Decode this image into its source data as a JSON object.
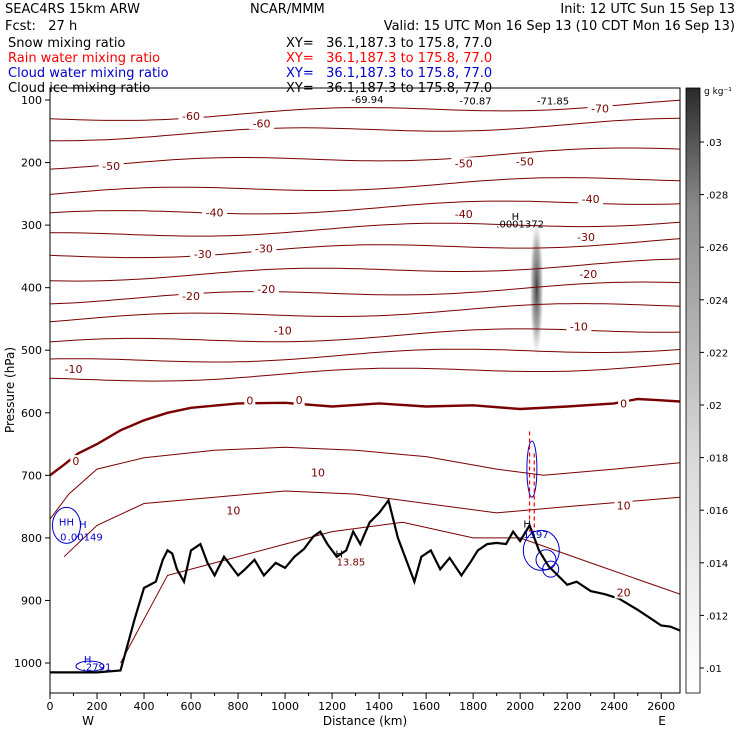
{
  "header": {
    "left_line1": "SEAC4RS 15km ARW",
    "left_line2": "Fcst:   27 h",
    "center_line1": "NCAR/MMM",
    "init_line": "Init: 12 UTC Sun 15 Sep 13",
    "valid_line": "Valid: 15 UTC Mon 16 Sep 13 (10 CDT Mon 16 Sep 13)"
  },
  "fields": [
    {
      "name": "Snow mixing ratio",
      "xy": "XY=   36.1,187.3 to 175.8, 77.0",
      "color": "#000000"
    },
    {
      "name": "Rain water mixing ratio",
      "xy": "XY=   36.1,187.3 to 175.8, 77.0",
      "color": "#ff0000"
    },
    {
      "name": "Cloud water mixing ratio",
      "xy": "XY=   36.1,187.3 to 175.8, 77.0",
      "color": "#0000cc"
    },
    {
      "name": "Cloud ice mixing ratio",
      "xy": "XY=   36.1,187.3 to 175.8, 77.0",
      "color": "#000000"
    }
  ],
  "colors": {
    "temperature": "#7a0000",
    "terrain": "#000000",
    "cloud": "#0000cc",
    "rain": "#ff0000"
  },
  "chart_data": {
    "type": "cross-section",
    "xlabel": "Distance (km)",
    "ylabel": "Pressure (hPa)",
    "xlim": [
      0,
      2680
    ],
    "ylim": [
      1050,
      100
    ],
    "xticks": [
      0,
      200,
      400,
      600,
      800,
      1000,
      1200,
      1400,
      1600,
      1800,
      2000,
      2200,
      2400,
      2600
    ],
    "yticks": [
      100,
      200,
      300,
      400,
      500,
      600,
      700,
      800,
      900,
      1000
    ],
    "x_end_labels": {
      "left": "W",
      "right": "E"
    },
    "colorbar": {
      "unit": "g kg⁻¹",
      "ticks": [
        ".01",
        ".012",
        ".014",
        ".016",
        ".018",
        ".02",
        ".022",
        ".024",
        ".026",
        ".028",
        ".03"
      ]
    },
    "temperature_contour_labels": [
      {
        "text": "-60",
        "x": 600,
        "p": 130
      },
      {
        "text": "-60",
        "x": 900,
        "p": 142
      },
      {
        "text": "-70",
        "x": 2340,
        "p": 118
      },
      {
        "text": "-50",
        "x": 260,
        "p": 210
      },
      {
        "text": "-50",
        "x": 1760,
        "p": 206
      },
      {
        "text": "-50",
        "x": 2020,
        "p": 203
      },
      {
        "text": "-40",
        "x": 700,
        "p": 285
      },
      {
        "text": "-40",
        "x": 1760,
        "p": 287
      },
      {
        "text": "-40",
        "x": 2300,
        "p": 263
      },
      {
        "text": "-30",
        "x": 650,
        "p": 351
      },
      {
        "text": "-30",
        "x": 910,
        "p": 342
      },
      {
        "text": "-30",
        "x": 2280,
        "p": 324
      },
      {
        "text": "-20",
        "x": 600,
        "p": 418
      },
      {
        "text": "-20",
        "x": 920,
        "p": 407
      },
      {
        "text": "-20",
        "x": 2290,
        "p": 383
      },
      {
        "text": "-10",
        "x": 990,
        "p": 473
      },
      {
        "text": "-10",
        "x": 100,
        "p": 535
      },
      {
        "text": "-10",
        "x": 2250,
        "p": 467
      },
      {
        "text": "0",
        "x": 850,
        "p": 585
      },
      {
        "text": "0",
        "x": 1060,
        "p": 584
      },
      {
        "text": "0",
        "x": 2440,
        "p": 590
      },
      {
        "text": "0",
        "x": 110,
        "p": 682
      },
      {
        "text": "10",
        "x": 1140,
        "p": 700
      },
      {
        "text": "10",
        "x": 780,
        "p": 761
      },
      {
        "text": "10",
        "x": 2440,
        "p": 753
      },
      {
        "text": "20",
        "x": 2440,
        "p": 892
      }
    ],
    "extrema": [
      {
        "text": "-69.94",
        "x": 1350,
        "p": 105
      },
      {
        "text": "-70.87",
        "x": 1810,
        "p": 107
      },
      {
        "text": "-71.85",
        "x": 2140,
        "p": 107
      },
      {
        "text": "H",
        "x": 1980,
        "p": 292
      },
      {
        "text": ".0001372",
        "x": 2000,
        "p": 304
      },
      {
        "text": "HH",
        "x": 70,
        "p": 780
      },
      {
        "text": "H",
        "x": 140,
        "p": 784
      },
      {
        "text": ".0",
        "x": 50,
        "p": 804
      },
      {
        "text": ".00149",
        "x": 150,
        "p": 804
      },
      {
        "text": "H",
        "x": 1230,
        "p": 831
      },
      {
        "text": "13.85",
        "x": 1280,
        "p": 844
      },
      {
        "text": "H",
        "x": 2030,
        "p": 783
      },
      {
        "text": ".1597",
        "x": 2060,
        "p": 800
      },
      {
        "text": "H",
        "x": 160,
        "p": 1000
      },
      {
        "text": ".2791",
        "x": 200,
        "p": 1012
      }
    ],
    "terrain": [
      [
        0,
        1015
      ],
      [
        100,
        1015
      ],
      [
        200,
        1015
      ],
      [
        300,
        1012
      ],
      [
        320,
        985
      ],
      [
        360,
        930
      ],
      [
        400,
        880
      ],
      [
        450,
        870
      ],
      [
        480,
        835
      ],
      [
        500,
        820
      ],
      [
        520,
        825
      ],
      [
        540,
        850
      ],
      [
        570,
        870
      ],
      [
        600,
        820
      ],
      [
        640,
        810
      ],
      [
        670,
        840
      ],
      [
        700,
        860
      ],
      [
        740,
        830
      ],
      [
        770,
        845
      ],
      [
        800,
        860
      ],
      [
        830,
        850
      ],
      [
        870,
        835
      ],
      [
        910,
        860
      ],
      [
        960,
        840
      ],
      [
        1000,
        848
      ],
      [
        1040,
        830
      ],
      [
        1080,
        818
      ],
      [
        1120,
        798
      ],
      [
        1150,
        790
      ],
      [
        1180,
        810
      ],
      [
        1220,
        830
      ],
      [
        1260,
        820
      ],
      [
        1290,
        790
      ],
      [
        1320,
        810
      ],
      [
        1360,
        775
      ],
      [
        1400,
        760
      ],
      [
        1440,
        740
      ],
      [
        1480,
        800
      ],
      [
        1520,
        840
      ],
      [
        1550,
        870
      ],
      [
        1580,
        830
      ],
      [
        1620,
        820
      ],
      [
        1660,
        850
      ],
      [
        1700,
        832
      ],
      [
        1750,
        860
      ],
      [
        1790,
        838
      ],
      [
        1820,
        820
      ],
      [
        1860,
        810
      ],
      [
        1900,
        808
      ],
      [
        1940,
        810
      ],
      [
        1970,
        790
      ],
      [
        2000,
        805
      ],
      [
        2040,
        780
      ],
      [
        2080,
        820
      ],
      [
        2120,
        845
      ],
      [
        2160,
        860
      ],
      [
        2200,
        875
      ],
      [
        2240,
        870
      ],
      [
        2300,
        885
      ],
      [
        2360,
        890
      ],
      [
        2420,
        897
      ],
      [
        2500,
        915
      ],
      [
        2560,
        930
      ],
      [
        2600,
        940
      ],
      [
        2640,
        942
      ],
      [
        2680,
        948
      ]
    ],
    "rain_lines": [
      {
        "x": 2040,
        "p_top": 630,
        "p_bottom": 790
      },
      {
        "x": 2060,
        "p_top": 665,
        "p_bottom": 790
      }
    ],
    "gray_shading": {
      "x": 2070,
      "p_center": 400,
      "p_halfwidth": 80
    }
  }
}
